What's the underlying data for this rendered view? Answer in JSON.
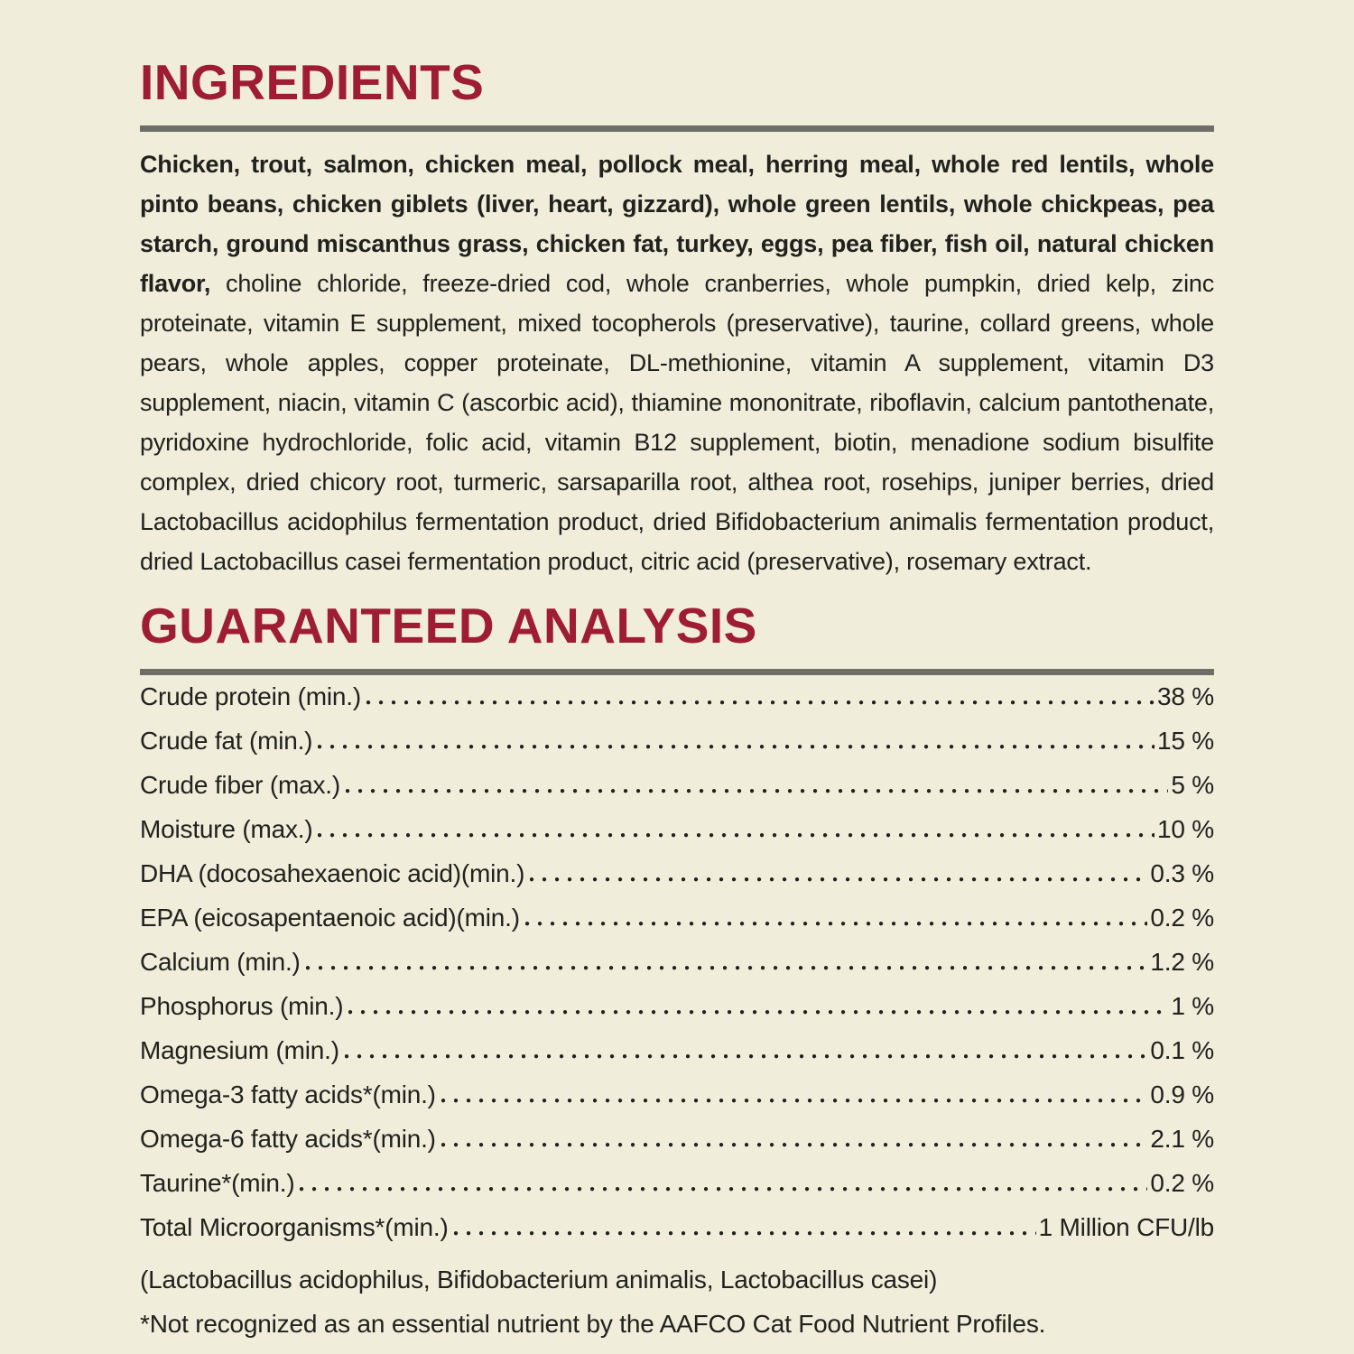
{
  "label": {
    "ingredients": {
      "title": "INGREDIENTS",
      "primary": "Chicken, trout, salmon, chicken meal, pollock meal, herring meal, whole red lentils, whole pinto beans, chicken giblets (liver, heart, gizzard), whole green lentils, whole chickpeas, pea starch, ground miscanthus grass, chicken fat, turkey, eggs, pea fiber, fish oil, natural chicken flavor,",
      "secondary": " choline chloride, freeze-dried cod, whole cranberries, whole pumpkin, dried kelp, zinc proteinate, vitamin E supplement, mixed tocopherols (preservative), taurine, collard greens, whole pears, whole apples, copper proteinate, DL-methionine, vitamin A supplement, vitamin D3 supplement, niacin, vitamin C (ascorbic acid), thiamine mononitrate, riboflavin, calcium pantothenate, pyridoxine hydrochloride, folic acid, vitamin B12 supplement, biotin, menadione sodium bisulfite complex, dried chicory root, turmeric, sarsaparilla root, althea root, rosehips, juniper berries, dried Lactobacillus acidophilus fermentation product, dried Bifidobacterium animalis fermentation product, dried Lactobacillus casei fermentation product, citric acid (preservative), rosemary extract."
    },
    "analysis": {
      "title": "GUARANTEED ANALYSIS",
      "rows": [
        {
          "label": "Crude protein (min.)",
          "value": "38 %"
        },
        {
          "label": "Crude fat (min.)",
          "value": "15 %"
        },
        {
          "label": "Crude fiber (max.)",
          "value": "5 %"
        },
        {
          "label": "Moisture (max.)",
          "value": "10 %"
        },
        {
          "label": "DHA (docosahexaenoic acid)(min.)",
          "value": "0.3 %"
        },
        {
          "label": "EPA (eicosapentaenoic acid)(min.)",
          "value": "0.2 %"
        },
        {
          "label": "Calcium (min.)",
          "value": "1.2 %"
        },
        {
          "label": "Phosphorus (min.)",
          "value": "1 %"
        },
        {
          "label": "Magnesium (min.)",
          "value": "0.1 %"
        },
        {
          "label": "Omega-3 fatty acids*(min.)",
          "value": "0.9 %"
        },
        {
          "label": "Omega-6 fatty acids*(min.)",
          "value": "2.1 %"
        },
        {
          "label": "Taurine*(min.)",
          "value": "0.2 %"
        },
        {
          "label": "Total Microorganisms*(min.)",
          "value": "1 Million CFU/lb"
        }
      ],
      "species_note": "(Lactobacillus acidophilus, Bifidobacterium animalis, Lactobacillus casei)",
      "footnote": "*Not recognized as an essential nutrient by the AAFCO Cat Food Nutrient Profiles."
    },
    "colors": {
      "background": "#f0eddb",
      "heading_red": "#9e1d32",
      "divider_gray": "#6e6e68",
      "body_text": "#21211d"
    }
  }
}
